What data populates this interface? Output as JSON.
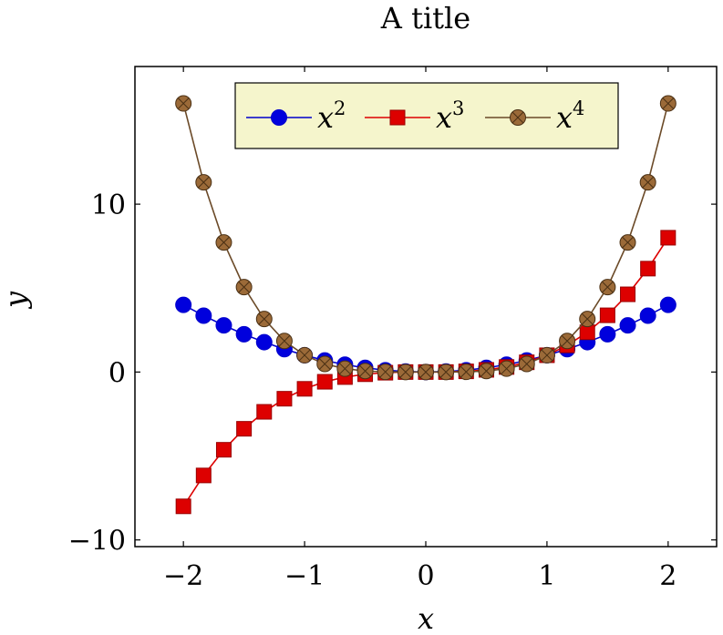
{
  "chart_data": {
    "type": "line",
    "title": "A title",
    "xlabel": "x",
    "ylabel": "y",
    "xlim": [
      -2.4,
      2.4
    ],
    "ylim": [
      -10.4,
      18.2
    ],
    "xticks": [
      -2,
      -1,
      0,
      1,
      2
    ],
    "xtick_labels": [
      "−2",
      "−1",
      "0",
      "1",
      "2"
    ],
    "yticks": [
      -10,
      0,
      10
    ],
    "ytick_labels": [
      "−10",
      "0",
      "10"
    ],
    "grid": false,
    "legend_position": "top-center",
    "legend_background": "#f5f5cc",
    "x": [
      -2,
      -1.8333,
      -1.6667,
      -1.5,
      -1.3333,
      -1.1667,
      -1,
      -0.8333,
      -0.6667,
      -0.5,
      -0.3333,
      -0.1667,
      0,
      0.1667,
      0.3333,
      0.5,
      0.6667,
      0.8333,
      1,
      1.1667,
      1.3333,
      1.5,
      1.6667,
      1.8333,
      2
    ],
    "series": [
      {
        "name_base": "x",
        "name_sup": "2",
        "color": "#0000cc",
        "fill": "#0000dd",
        "marker": "circle",
        "values": [
          4,
          3.36,
          2.78,
          2.25,
          1.78,
          1.36,
          1,
          0.69,
          0.44,
          0.25,
          0.11,
          0.03,
          0,
          0.03,
          0.11,
          0.25,
          0.44,
          0.69,
          1,
          1.36,
          1.78,
          2.25,
          2.78,
          3.36,
          4
        ]
      },
      {
        "name_base": "x",
        "name_sup": "3",
        "color": "#dd0000",
        "fill": "#dd0000",
        "marker": "square",
        "values": [
          -8,
          -6.16,
          -4.63,
          -3.38,
          -2.37,
          -1.59,
          -1,
          -0.58,
          -0.3,
          -0.13,
          -0.04,
          0,
          0,
          0,
          0.04,
          0.13,
          0.3,
          0.58,
          1,
          1.59,
          2.37,
          3.38,
          4.63,
          6.16,
          8
        ]
      },
      {
        "name_base": "x",
        "name_sup": "4",
        "color": "#6b4a28",
        "fill": "#9b6a38",
        "marker": "otimes",
        "values": [
          16,
          11.3,
          7.72,
          5.06,
          3.16,
          1.85,
          1,
          0.48,
          0.2,
          0.06,
          0.01,
          0,
          0,
          0,
          0.01,
          0.06,
          0.2,
          0.48,
          1,
          1.85,
          3.16,
          5.06,
          7.72,
          11.3,
          16
        ]
      }
    ]
  }
}
